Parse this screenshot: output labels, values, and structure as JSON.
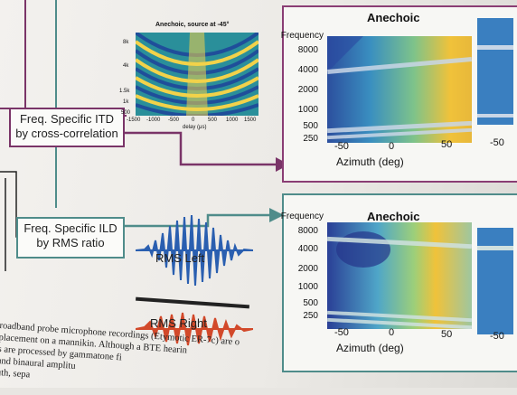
{
  "itd_box": {
    "line1": "Freq. Specific ITD",
    "line2": "by cross-correlation"
  },
  "ild_box": {
    "line1": "Freq. Specific ILD",
    "line2": "by RMS  ratio"
  },
  "inset": {
    "title": "Anechoic, source at -45°",
    "y_ticks": [
      "8k",
      "4k",
      "1.5k",
      "1k",
      "500"
    ],
    "x_ticks": [
      "-1500",
      "-1000",
      "-500",
      "0",
      "500",
      "1000",
      "1500"
    ],
    "x_label": "delay (μs)"
  },
  "top_panel": {
    "title": "Anechoic",
    "y_title": "Frequency",
    "y_ticks": [
      "8000",
      "4000",
      "2000",
      "1000",
      "500",
      "250"
    ],
    "x_ticks": [
      "-50",
      "0",
      "50"
    ],
    "x_ticks_right": [
      "-50"
    ],
    "x_label": "Azimuth (deg)"
  },
  "bottom_panel": {
    "title": "Anechoic",
    "y_title": "Frequency",
    "y_ticks": [
      "8000",
      "4000",
      "2000",
      "1000",
      "500",
      "250"
    ],
    "x_ticks": [
      "-50",
      "0",
      "50"
    ],
    "x_ticks_right": [
      "-50"
    ],
    "x_label": "Azimuth (deg)"
  },
  "waves": {
    "left_label": "RMS Left",
    "right_label": "RMS Right",
    "left_color": "#2a5fb0",
    "right_color": "#d2492a"
  },
  "caption": {
    "line1": "roadband probe microphone recordings (Etymotic ER-7c) are o",
    "line2": "placement on a mannikin. Although a BTE hearin",
    "line3": "s are processed by gammatone fi",
    "line4": "and binaural amplitu",
    "line5": "uth, sepa"
  },
  "colors": {
    "itd_border": "#7a3468",
    "ild_border": "#4f8c8a",
    "heat_blue": "#2c4f9e",
    "heat_yellow": "#f0c23a"
  }
}
